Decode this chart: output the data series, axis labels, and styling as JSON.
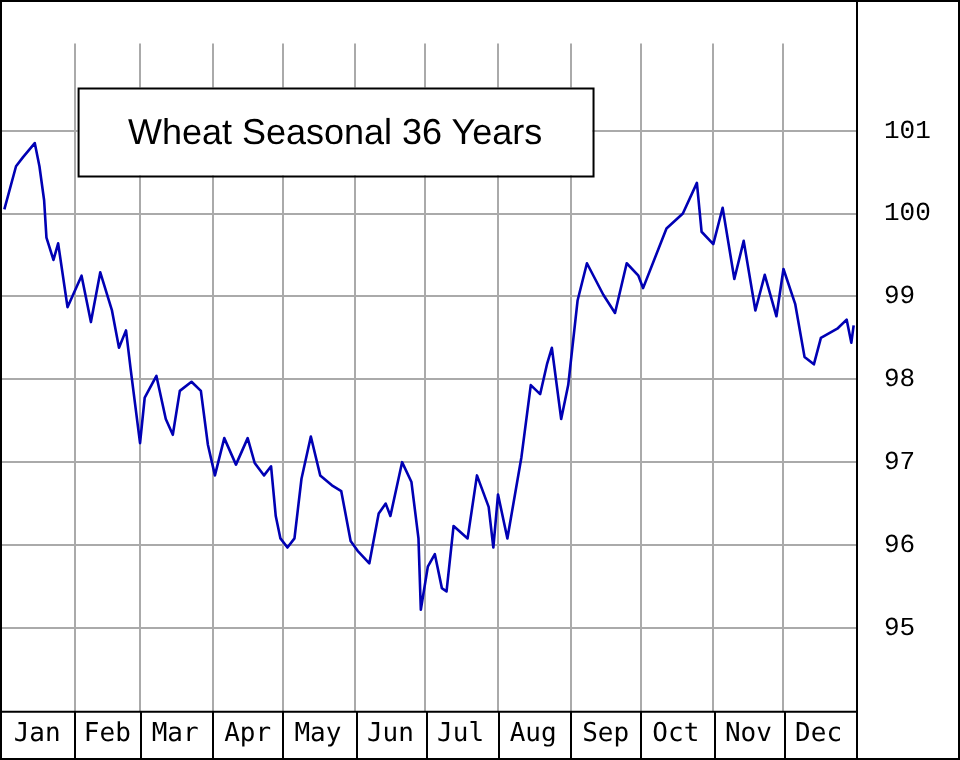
{
  "chart_data": {
    "type": "line",
    "title": "Wheat Seasonal 36 Years",
    "x": [
      "--01-02",
      "--01-07",
      "--01-10",
      "--01-15",
      "--01-17",
      "--01-19",
      "--01-20",
      "--01-23",
      "--01-25",
      "--01-29",
      "--02-04",
      "--02-08",
      "--02-12",
      "--02-17",
      "--02-20",
      "--02-23",
      "--02-25",
      "--03-01",
      "--03-03",
      "--03-08",
      "--03-12",
      "--03-15",
      "--03-18",
      "--03-23",
      "--03-27",
      "--03-30",
      "--04-02",
      "--04-06",
      "--04-11",
      "--04-16",
      "--04-19",
      "--04-23",
      "--04-26",
      "--04-28",
      "--04-30",
      "--05-03",
      "--05-06",
      "--05-09",
      "--05-13",
      "--05-17",
      "--05-22",
      "--05-26",
      "--05-30",
      "--06-02",
      "--06-07",
      "--06-11",
      "--06-14",
      "--06-16",
      "--06-21",
      "--06-25",
      "--06-28",
      "--06-29",
      "--07-02",
      "--07-05",
      "--07-08",
      "--07-10",
      "--07-13",
      "--07-19",
      "--07-23",
      "--07-28",
      "--07-30",
      "--08-01",
      "--08-05",
      "--08-11",
      "--08-15",
      "--08-19",
      "--08-22",
      "--08-24",
      "--08-28",
      "--08-31",
      "--09-04",
      "--09-08",
      "--09-15",
      "--09-20",
      "--09-25",
      "--09-30",
      "--10-02",
      "--10-12",
      "--10-19",
      "--10-25",
      "--10-27",
      "--11-01",
      "--11-05",
      "--11-10",
      "--11-14",
      "--11-19",
      "--11-23",
      "--11-28",
      "--12-01",
      "--12-06",
      "--12-10",
      "--12-14",
      "--12-17",
      "--12-24",
      "--12-28",
      "--12-30",
      "--12-31"
    ],
    "series": [
      {
        "color": "#0000b4",
        "values": [
          100.05,
          100.57,
          100.68,
          100.85,
          100.57,
          100.16,
          99.71,
          99.44,
          99.64,
          98.87,
          99.25,
          98.69,
          99.29,
          98.83,
          98.38,
          98.59,
          98.12,
          97.23,
          97.78,
          98.04,
          97.52,
          97.33,
          97.86,
          97.97,
          97.86,
          97.21,
          96.84,
          97.29,
          96.97,
          97.29,
          96.99,
          96.84,
          96.95,
          96.35,
          96.08,
          95.97,
          96.08,
          96.8,
          97.31,
          96.84,
          96.72,
          96.65,
          96.05,
          95.93,
          95.78,
          96.38,
          96.5,
          96.35,
          97.0,
          96.76,
          96.08,
          95.22,
          95.74,
          95.89,
          95.48,
          95.44,
          96.23,
          96.08,
          96.84,
          96.46,
          95.97,
          96.61,
          96.08,
          97.06,
          97.93,
          97.82,
          98.19,
          98.38,
          97.52,
          97.93,
          98.95,
          99.4,
          99.02,
          98.8,
          99.4,
          99.25,
          99.1,
          99.82,
          100.0,
          100.37,
          99.78,
          99.63,
          100.07,
          99.21,
          99.67,
          98.83,
          99.26,
          98.76,
          99.33,
          98.91,
          98.27,
          98.18,
          98.5,
          98.61,
          98.72,
          98.44,
          98.65
        ]
      }
    ],
    "xlim": [
      "--01-01",
      "--12-31"
    ],
    "xticks": [
      {
        "value": "--01-16",
        "label": "Jan"
      },
      {
        "value": "--02-01",
        "label": null
      },
      {
        "value": "--02-15",
        "label": "Feb"
      },
      {
        "value": "--03-01",
        "label": null
      },
      {
        "value": "--03-16",
        "label": "Mar"
      },
      {
        "value": "--04-01",
        "label": null
      },
      {
        "value": "--04-16",
        "label": "Apr"
      },
      {
        "value": "--05-01",
        "label": null
      },
      {
        "value": "--05-16",
        "label": "May"
      },
      {
        "value": "--06-01",
        "label": null
      },
      {
        "value": "--06-16",
        "label": "Jun"
      },
      {
        "value": "--07-01",
        "label": null
      },
      {
        "value": "--07-16",
        "label": "Jul"
      },
      {
        "value": "--08-01",
        "label": null
      },
      {
        "value": "--08-16",
        "label": "Aug"
      },
      {
        "value": "--09-01",
        "label": null
      },
      {
        "value": "--09-16",
        "label": "Sep"
      },
      {
        "value": "--10-01",
        "label": null
      },
      {
        "value": "--10-16",
        "label": "Oct"
      },
      {
        "value": "--11-01",
        "label": null
      },
      {
        "value": "--11-16",
        "label": "Nov"
      },
      {
        "value": "--12-01",
        "label": null
      },
      {
        "value": "--12-16",
        "label": "Dec"
      }
    ],
    "ylim": [
      94,
      102.05
    ],
    "yticks": [
      95,
      96,
      97,
      98,
      99,
      100,
      101
    ],
    "grid": true,
    "legend": false,
    "marker": "none",
    "line_style": "solid"
  }
}
